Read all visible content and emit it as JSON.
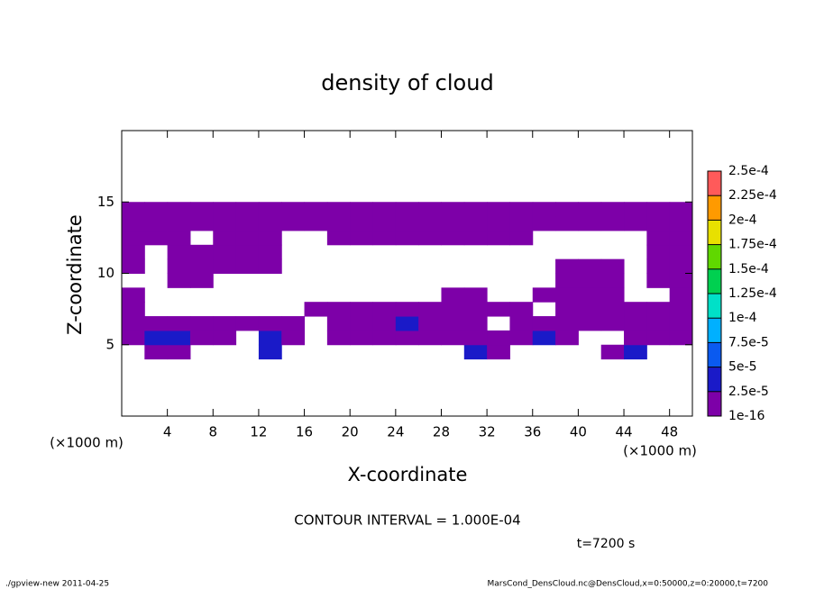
{
  "chart_data": {
    "type": "contour",
    "title": "density of cloud",
    "x_label": "X-coordinate",
    "y_label": "Z-coordinate",
    "x_unit_label": "(×1000 m)",
    "annotation": "CONTOUR INTERVAL = 1.000E-04",
    "time_label": "t=7200 s",
    "footer_left": "./gpview-new  2011-04-25",
    "footer_right": "MarsCond_DensCloud.nc@DensCloud,x=0:50000,z=0:20000,t=7200",
    "xlim": [
      0,
      50
    ],
    "xticks": [
      4,
      8,
      12,
      16,
      20,
      24,
      28,
      32,
      36,
      40,
      44,
      48
    ],
    "ylim": [
      0,
      20
    ],
    "yticks": [
      5,
      10,
      15
    ],
    "x": [
      1,
      3,
      5,
      7,
      9,
      11,
      13,
      15,
      17,
      19,
      21,
      23,
      25,
      27,
      29,
      31,
      33,
      35,
      37,
      39,
      41,
      43,
      45,
      47,
      49
    ],
    "z": [
      4.5,
      5.5,
      6.5,
      7.5,
      8.5,
      9.5,
      10.5,
      11.5,
      12.5,
      13.5,
      14.5
    ],
    "values": [
      [
        null,
        1e-05,
        1e-05,
        null,
        null,
        null,
        3e-05,
        null,
        null,
        null,
        null,
        null,
        null,
        null,
        null,
        3e-05,
        1e-05,
        null,
        null,
        null,
        null,
        1e-05,
        3e-05,
        null,
        null
      ],
      [
        1e-05,
        3e-05,
        3e-05,
        1e-05,
        1e-05,
        null,
        3e-05,
        1e-05,
        null,
        1e-05,
        1e-05,
        1e-05,
        1e-05,
        1e-05,
        1e-05,
        1e-05,
        1e-05,
        1e-05,
        3e-05,
        1e-05,
        null,
        null,
        1e-05,
        1e-05,
        1e-05
      ],
      [
        1e-05,
        1e-05,
        1e-05,
        1e-05,
        1e-05,
        1e-05,
        1e-05,
        1e-05,
        null,
        1e-05,
        1e-05,
        1e-05,
        3e-05,
        1e-05,
        1e-05,
        1e-05,
        null,
        1e-05,
        1e-05,
        1e-05,
        1e-05,
        1e-05,
        1e-05,
        1e-05,
        1e-05
      ],
      [
        1e-05,
        null,
        null,
        null,
        null,
        null,
        null,
        null,
        1e-05,
        1e-05,
        1e-05,
        1e-05,
        1e-05,
        1e-05,
        1e-05,
        1e-05,
        1e-05,
        1e-05,
        null,
        1e-05,
        1e-05,
        1e-05,
        1e-05,
        1e-05,
        1e-05
      ],
      [
        1e-05,
        null,
        null,
        null,
        null,
        null,
        null,
        null,
        null,
        null,
        null,
        null,
        null,
        null,
        1e-05,
        1e-05,
        null,
        null,
        1e-05,
        1e-05,
        1e-05,
        1e-05,
        null,
        null,
        1e-05
      ],
      [
        null,
        null,
        1e-05,
        1e-05,
        null,
        null,
        null,
        null,
        null,
        null,
        null,
        null,
        null,
        null,
        null,
        null,
        null,
        null,
        null,
        1e-05,
        1e-05,
        1e-05,
        null,
        1e-05,
        1e-05
      ],
      [
        1e-05,
        null,
        1e-05,
        1e-05,
        1e-05,
        1e-05,
        1e-05,
        null,
        null,
        null,
        null,
        null,
        null,
        null,
        null,
        null,
        null,
        null,
        null,
        1e-05,
        1e-05,
        1e-05,
        null,
        1e-05,
        1e-05
      ],
      [
        1e-05,
        null,
        1e-05,
        1e-05,
        1e-05,
        1e-05,
        1e-05,
        null,
        null,
        null,
        null,
        null,
        null,
        null,
        null,
        null,
        null,
        null,
        null,
        null,
        null,
        null,
        null,
        1e-05,
        1e-05
      ],
      [
        1e-05,
        1e-05,
        1e-05,
        null,
        1e-05,
        1e-05,
        1e-05,
        null,
        null,
        1e-05,
        1e-05,
        1e-05,
        1e-05,
        1e-05,
        1e-05,
        1e-05,
        1e-05,
        1e-05,
        null,
        null,
        null,
        null,
        null,
        1e-05,
        1e-05
      ],
      [
        1e-05,
        1e-05,
        1e-05,
        1e-05,
        1e-05,
        1e-05,
        1e-05,
        1e-05,
        1e-05,
        1e-05,
        1e-05,
        1e-05,
        1e-05,
        1e-05,
        1e-05,
        1e-05,
        1e-05,
        1e-05,
        1e-05,
        1e-05,
        1e-05,
        1e-05,
        1e-05,
        1e-05,
        1e-05
      ],
      [
        1e-05,
        1e-05,
        1e-05,
        1e-05,
        1e-05,
        1e-05,
        1e-05,
        1e-05,
        1e-05,
        1e-05,
        1e-05,
        1e-05,
        1e-05,
        1e-05,
        1e-05,
        1e-05,
        1e-05,
        1e-05,
        1e-05,
        1e-05,
        1e-05,
        1e-05,
        1e-05,
        1e-05,
        1e-05
      ]
    ],
    "colorbar_ticks": [
      1e-16,
      {
        "value": 2.5e-05,
        "label": "2.5e-5"
      },
      {
        "value": 5e-05,
        "label": "5e-5"
      },
      {
        "value": 7.5e-05,
        "label": "7.5e-5"
      },
      {
        "value": 0.0001,
        "label": "1e-4"
      },
      {
        "value": 0.000125,
        "label": "1.25e-4"
      },
      {
        "value": 0.00015,
        "label": "1.5e-4"
      },
      {
        "value": 0.000175,
        "label": "1.75e-4"
      },
      {
        "value": 0.0002,
        "label": "2e-4"
      },
      {
        "value": 0.000225,
        "label": "2.25e-4"
      },
      {
        "value": 0.00025,
        "label": "2.5e-4"
      }
    ],
    "colors": [
      "#7d00a8",
      "#1a1ac8",
      "#0a5af0",
      "#00b0ff",
      "#00e0c8",
      "#00d050",
      "#60d800",
      "#e8e000",
      "#ff9a00",
      "#ff5a5a"
    ]
  }
}
